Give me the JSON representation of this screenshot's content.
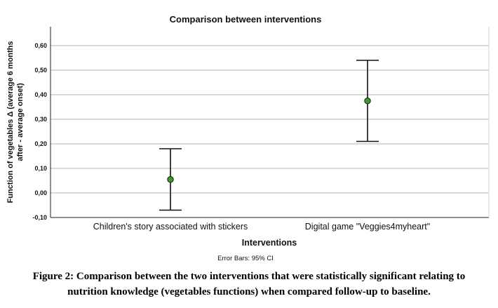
{
  "chart_data": {
    "type": "scatter",
    "title": "Comparison between interventions",
    "xlabel": "Interventions",
    "ylabel": [
      "Function of vegetables Δ (average 6 months",
      "after - average onset)"
    ],
    "categories": [
      "Children's story associated with stickers",
      "Digital game \"Veggies4myheart\""
    ],
    "means": [
      0.055,
      0.375
    ],
    "ci_lower": [
      -0.07,
      0.21
    ],
    "ci_upper": [
      0.18,
      0.54
    ],
    "ylim": [
      -0.1,
      0.65
    ],
    "yticks": [
      -0.1,
      0.0,
      0.1,
      0.2,
      0.3,
      0.4,
      0.5,
      0.6
    ],
    "ytick_labels": [
      "-0,10",
      "0,00",
      "0,10",
      "0,20",
      "0,30",
      "0,40",
      "0,50",
      "0,60"
    ],
    "grid": true,
    "footnote": "Error Bars: 95% CI",
    "colors": {
      "point": "#3a9b2a",
      "error_bar": "#111111",
      "grid": "#b3b3b3"
    }
  },
  "caption": {
    "line1": "Figure 2: Comparison between the two interventions that were statistically significant relating to",
    "line2": "nutrition knowledge (vegetables functions) when compared follow-up to baseline."
  }
}
